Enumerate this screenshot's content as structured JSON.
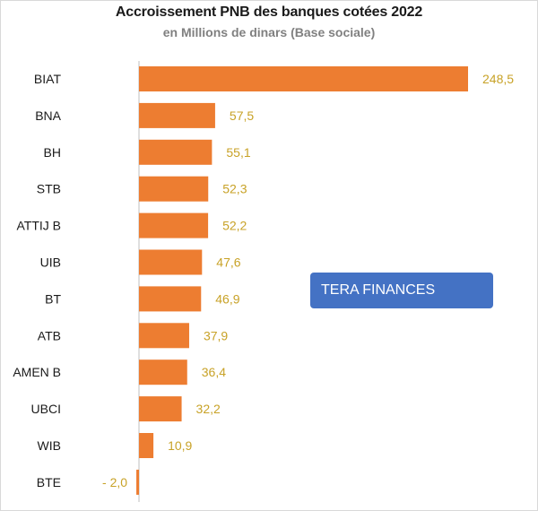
{
  "chart_data": {
    "type": "bar",
    "orientation": "horizontal",
    "title": "Accroissement PNB des banques cotées 2022",
    "subtitle": "en Millions de dinars (Base sociale)",
    "categories": [
      "BIAT",
      "BNA",
      "BH",
      "STB",
      "ATTIJ B",
      "UIB",
      "BT",
      "ATB",
      "AMEN B",
      "UBCI",
      "WIB",
      "BTE"
    ],
    "values": [
      248.5,
      57.5,
      55.1,
      52.3,
      52.2,
      47.6,
      46.9,
      37.9,
      36.4,
      32.2,
      10.9,
      -2.0
    ],
    "value_labels": [
      "248,5",
      "57,5",
      "55,1",
      "52,3",
      "52,2",
      "47,6",
      "46,9",
      "37,9",
      "36,4",
      "32,2",
      "10,9",
      "- 2,0"
    ],
    "xlabel": "",
    "ylabel": "",
    "grid": false,
    "bar_color": "#ed7d31",
    "label_color": "#c8a227"
  },
  "watermark": {
    "text": "TERA FINANCES",
    "color": "#4472c4"
  }
}
